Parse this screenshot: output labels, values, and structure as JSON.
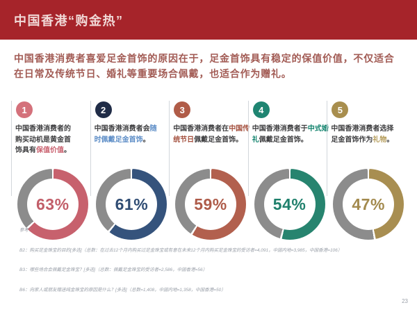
{
  "slide": {
    "title": "中国香港“购金热”",
    "intro": "中国香港消费者喜爱足金首饰的原因在于，足金首饰具有稳定的保值价值，不仅适合\n在日常及传统节日、婚礼等重要场合佩戴，也适合作为赠礼。",
    "page_number": "23"
  },
  "colors": {
    "banner": "#A6242A",
    "title_text": "#F1D9D7",
    "intro_text": "#A25B54",
    "body_text": "#3E3E40",
    "divider": "#D2D6DB",
    "donut_remainder": "#8C8C8C",
    "footnote_text": "#999FA8"
  },
  "reasons": [
    {
      "number": "1",
      "text_pre": "中国香港消费者的\n购买动机是黄金首\n饰具有",
      "text_highlight": "保值价值",
      "text_post": "。",
      "value": 63,
      "value_label": "63%",
      "circle_color": "#D4717B",
      "highlight_color": "#C9606E",
      "donut_color": "#C7616D",
      "pct_color": "#C25E69"
    },
    {
      "number": "2",
      "text_pre": "中国香港消费者会",
      "text_highlight": "随\n时佩戴足金首饰",
      "text_post": "。",
      "value": 61,
      "value_label": "61%",
      "circle_color": "#202C47",
      "highlight_color": "#5E8EC7",
      "donut_color": "#35537C",
      "pct_color": "#2F4C73"
    },
    {
      "number": "3",
      "text_pre": "中国香港消费者在",
      "text_highlight": "中国传\n统节日",
      "text_post": "佩戴足金首饰。",
      "value": 59,
      "value_label": "59%",
      "circle_color": "#B05C48",
      "highlight_color": "#A4503E",
      "donut_color": "#B2604E",
      "pct_color": "#AE5B49"
    },
    {
      "number": "4",
      "text_pre": "中国香港消费者于",
      "text_highlight": "中式婚\n礼",
      "text_post": "佩戴足金首饰。",
      "value": 54,
      "value_label": "54%",
      "circle_color": "#1F8572",
      "highlight_color": "#12836D",
      "donut_color": "#27846F",
      "pct_color": "#1F806C"
    },
    {
      "number": "5",
      "text_pre": "中国香港消费者选择\n足金首饰作为",
      "text_highlight": "礼物",
      "text_post": "。",
      "value": 47,
      "value_label": "47%",
      "circle_color": "#A88E4E",
      "highlight_color": "#B49B59",
      "donut_color": "#A88E51",
      "pct_color": "#A38A4E"
    }
  ],
  "footnotes": {
    "lines": [
      "参考：",
      "B2：购买足金珠宝的目的[多选]（总数：在过去12个月内购买过足金珠宝或有意在未来12个月内购买足金珠宝的受访者=4,091，中国内地=3,985，中国香港=106）",
      "B3：哪些场合会佩戴足金珠宝？[多选]（总数：佩戴足金珠宝的受访者=2,586，中国香港=56）",
      "B6：向家人或朋友赠送纯金珠宝的原因是什么？[多选]（总数=1,408，中国内地=1,358，中国香港=50）"
    ]
  },
  "chart_data": {
    "type": "pie",
    "subtype": "donut",
    "title": "中国香港“购金热”",
    "categories": [
      "保值价值",
      "随时佩戴足金首饰",
      "中国传统节日",
      "中式婚礼",
      "礼物"
    ],
    "values": [
      63,
      61,
      59,
      54,
      47
    ],
    "labels": [
      "63%",
      "61%",
      "59%",
      "54%",
      "47%"
    ],
    "colors": [
      "#C7616D",
      "#35537C",
      "#B2604E",
      "#27846F",
      "#A88E51"
    ],
    "remainder_color": "#8C8C8C",
    "start_angle_deg": 0,
    "direction": "clockwise",
    "legend": "none"
  }
}
